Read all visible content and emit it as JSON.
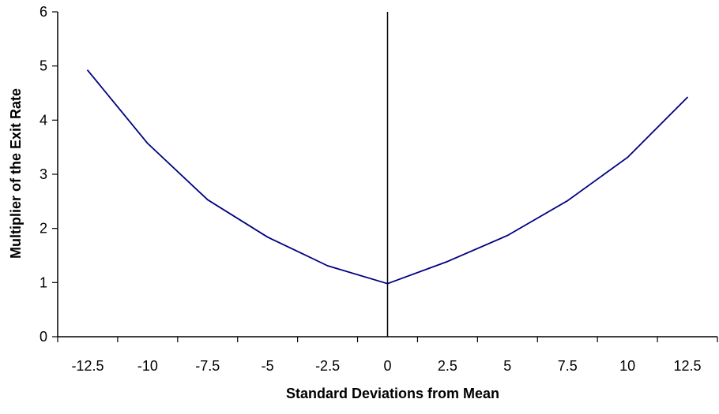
{
  "chart_data": {
    "type": "line",
    "title": "",
    "xlabel": "Standard Deviations from Mean",
    "ylabel": "Multiplier of the Exit Rate",
    "categories": [
      "-12.5",
      "-10",
      "-7.5",
      "-5",
      "-2.5",
      "0",
      "2.5",
      "5",
      "7.5",
      "10",
      "12.5"
    ],
    "series": [
      {
        "values": [
          4.92,
          3.57,
          2.53,
          1.84,
          1.31,
          0.98,
          1.39,
          1.87,
          2.51,
          3.31,
          4.42
        ]
      }
    ],
    "ylim": [
      0,
      6
    ],
    "yticks": [
      "0",
      "1",
      "2",
      "3",
      "4",
      "5",
      "6"
    ],
    "grid": false,
    "colors": {
      "line": "#000080",
      "axis": "#000000"
    }
  }
}
